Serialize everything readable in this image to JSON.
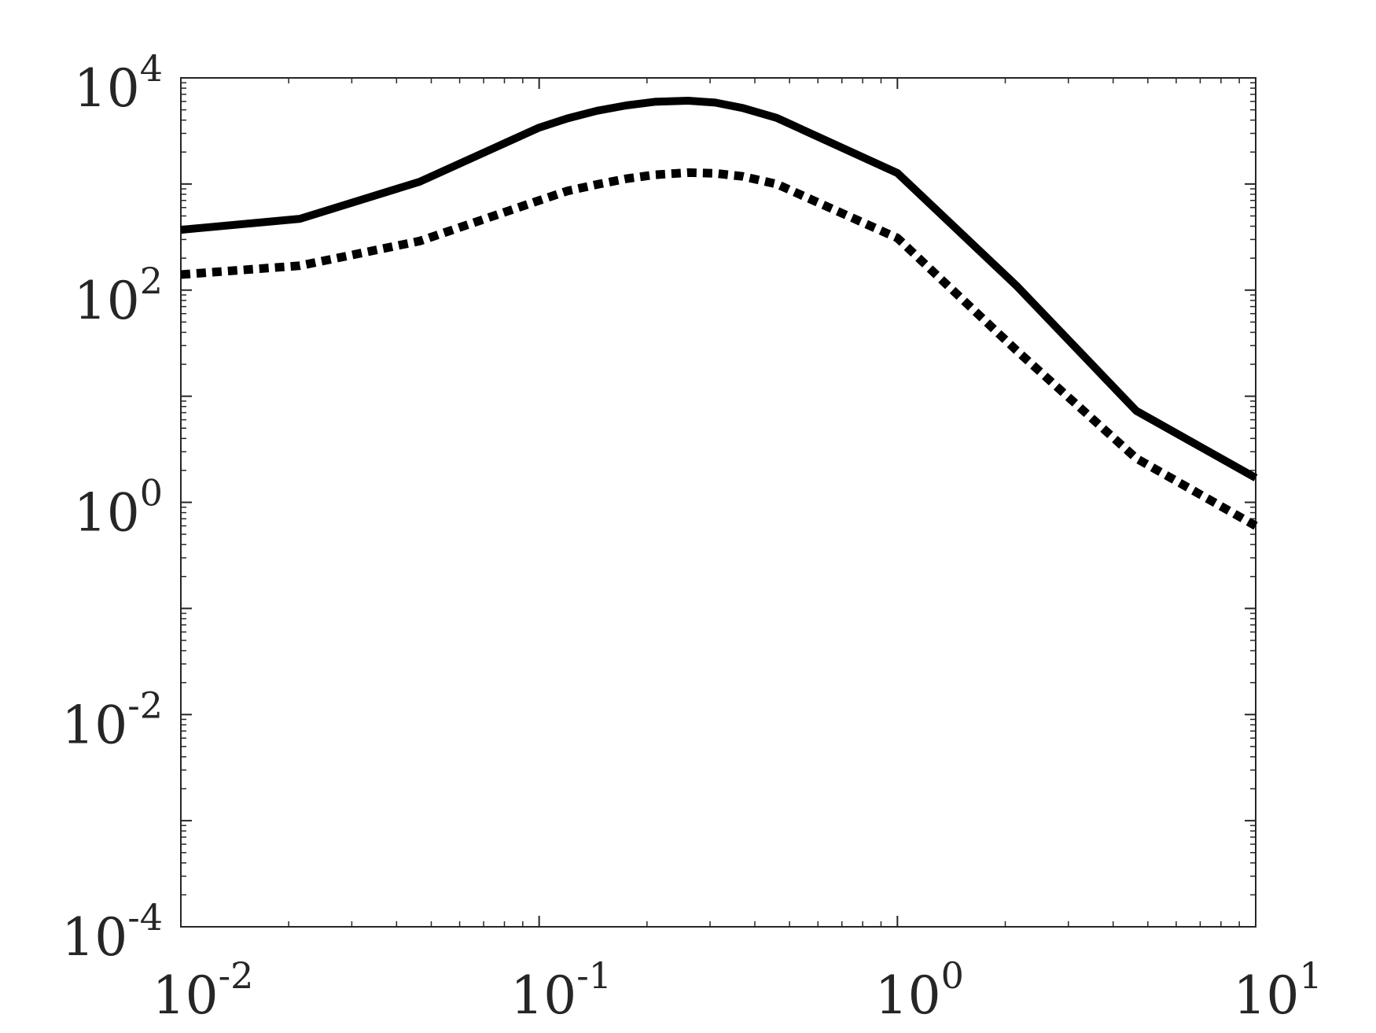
{
  "chart_data": {
    "type": "line",
    "title": "",
    "xlabel": "",
    "ylabel": "",
    "x_scale": "log",
    "y_scale": "log",
    "xlim": [
      0.01,
      10
    ],
    "ylim": [
      0.0001,
      10000
    ],
    "grid": false,
    "x_ticks": [
      {
        "value": 0.01,
        "base": "10",
        "exp": "-2"
      },
      {
        "value": 0.1,
        "base": "10",
        "exp": "-1"
      },
      {
        "value": 1,
        "base": "10",
        "exp": "0"
      },
      {
        "value": 10,
        "base": "10",
        "exp": "1"
      }
    ],
    "y_ticks": [
      {
        "value": 0.0001,
        "base": "10",
        "exp": "-4"
      },
      {
        "value": 0.01,
        "base": "10",
        "exp": "-2"
      },
      {
        "value": 1,
        "base": "10",
        "exp": "0"
      },
      {
        "value": 100,
        "base": "10",
        "exp": "2"
      },
      {
        "value": 10000,
        "base": "10",
        "exp": "4"
      }
    ],
    "series": [
      {
        "style": "solid",
        "color": "#000000",
        "x": [
          0.01,
          0.0215,
          0.0464,
          0.1,
          0.12,
          0.145,
          0.175,
          0.21,
          0.26,
          0.31,
          0.37,
          0.46,
          1.0,
          2.15,
          4.64,
          10.0
        ],
        "y": [
          370,
          470,
          1050,
          3400,
          4150,
          4900,
          5500,
          5950,
          6100,
          5850,
          5200,
          4200,
          1270,
          110,
          7.3,
          1.7
        ]
      },
      {
        "style": "dotted",
        "color": "#000000",
        "x": [
          0.01,
          0.0215,
          0.0464,
          0.1,
          0.12,
          0.145,
          0.175,
          0.21,
          0.26,
          0.31,
          0.37,
          0.46,
          1.0,
          2.15,
          4.64,
          10.0
        ],
        "y": [
          140,
          170,
          290,
          700,
          860,
          990,
          1120,
          1220,
          1280,
          1260,
          1180,
          1000,
          310,
          27,
          2.6,
          0.6
        ]
      }
    ]
  }
}
